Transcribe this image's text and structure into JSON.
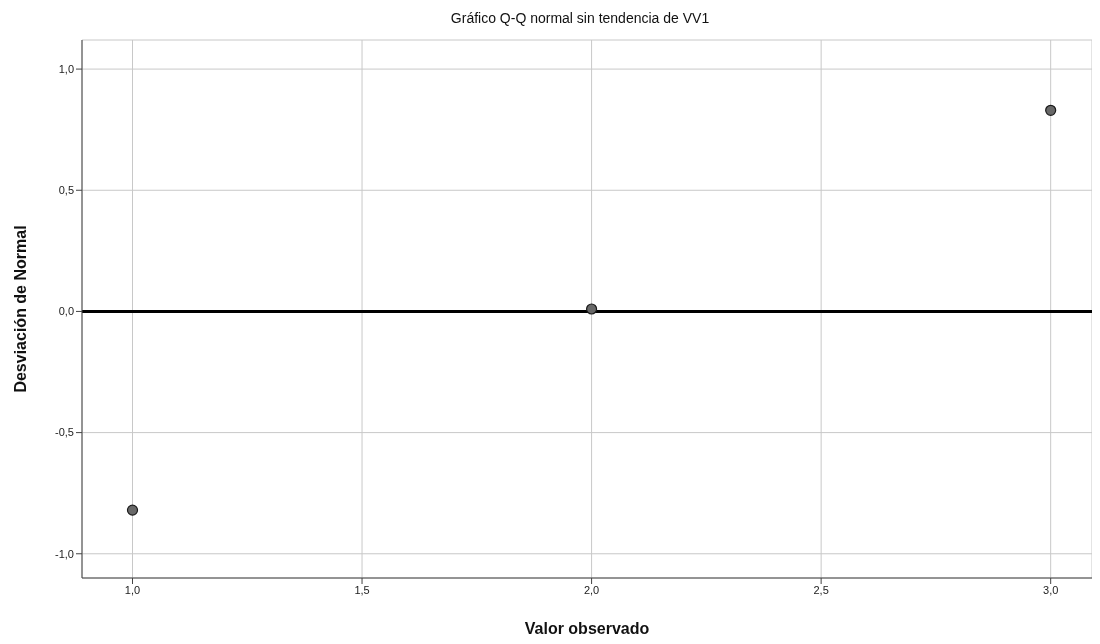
{
  "chart_data": {
    "type": "scatter",
    "title": "Gráfico Q-Q normal sin tendencia de VV1",
    "xlabel": "Valor observado",
    "ylabel": "Desviación de Normal",
    "x": [
      1,
      2,
      3
    ],
    "series": [
      {
        "color": "#686868",
        "values": [
          -0.82,
          0.01,
          0.83
        ]
      }
    ],
    "xlim": [
      0.89,
      3.09
    ],
    "xticks": [
      {
        "value": 1,
        "label": "1,0"
      },
      {
        "value": 1.5,
        "label": "1,5"
      },
      {
        "value": 2,
        "label": "2,0"
      },
      {
        "value": 2.5,
        "label": "2,5"
      },
      {
        "value": 3,
        "label": "3,0"
      }
    ],
    "ylim": [
      -1.1,
      1.12
    ],
    "yticks": [
      {
        "value": -1,
        "label": "-1,0"
      },
      {
        "value": -0.5,
        "label": "-0,5"
      },
      {
        "value": 0,
        "label": "0,0"
      },
      {
        "value": 0.5,
        "label": "0,5"
      },
      {
        "value": 1,
        "label": "1,0"
      }
    ],
    "ref_lines": [
      {
        "axis": "y",
        "value": 0,
        "color": "#000000"
      }
    ],
    "grid": true,
    "legend": false,
    "marker": "circle"
  }
}
